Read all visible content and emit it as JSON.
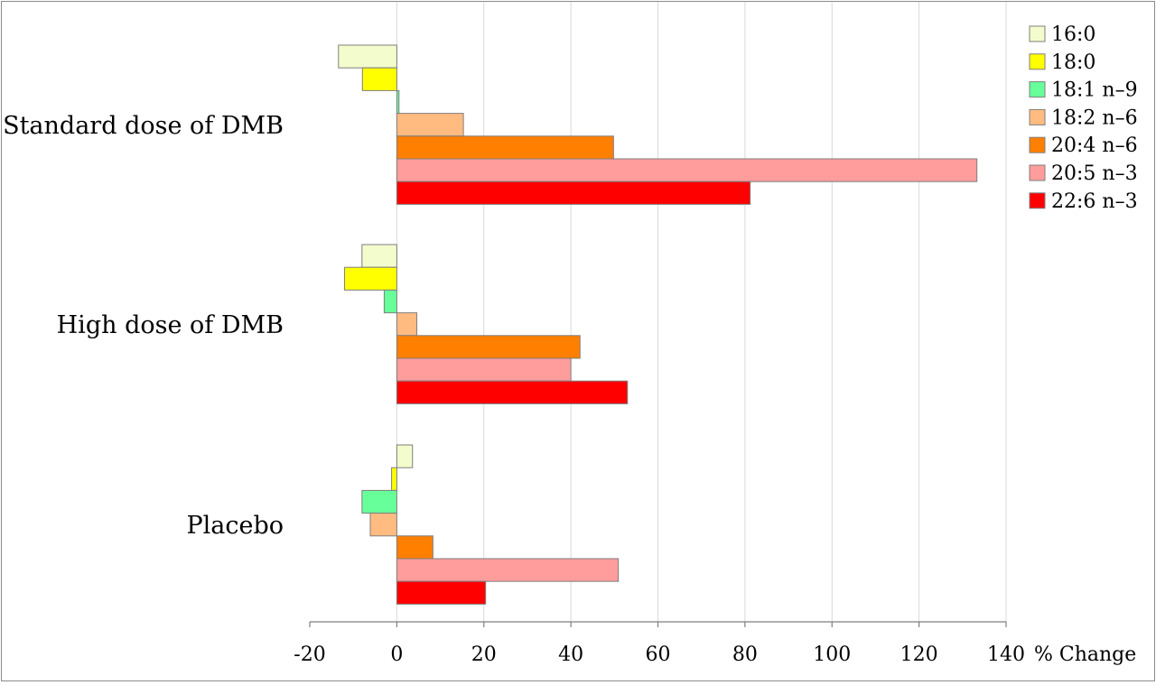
{
  "chart_data": {
    "type": "bar",
    "orientation": "horizontal",
    "title": "",
    "xlabel": "% Change",
    "ylabel": "",
    "xlim": [
      -20,
      140
    ],
    "xticks": [
      -20,
      0,
      20,
      40,
      60,
      80,
      100,
      120,
      140
    ],
    "grid": "vertical",
    "legend_position": "right",
    "categories": [
      "Standard dose of DMB",
      "High dose of DMB",
      "Placebo"
    ],
    "series": [
      {
        "name": "16:0",
        "color": "#f3fccc",
        "values": [
          -13.4,
          -8.0,
          3.6
        ]
      },
      {
        "name": "18:0",
        "color": "#ffff00",
        "values": [
          -7.9,
          -12.0,
          -1.2
        ]
      },
      {
        "name": "18:1 n–9",
        "color": "#66ff99",
        "values": [
          0.5,
          -2.9,
          -8.0
        ]
      },
      {
        "name": "18:2 n–6",
        "color": "#ffbb80",
        "values": [
          15.3,
          4.6,
          -6.1
        ]
      },
      {
        "name": "20:4 n–6",
        "color": "#ff7f00",
        "values": [
          49.8,
          42.1,
          8.3
        ]
      },
      {
        "name": "20:5 n–3",
        "color": "#ff9c9c",
        "values": [
          133.3,
          40.0,
          50.9
        ]
      },
      {
        "name": "22:6 n–3",
        "color": "#ff0000",
        "values": [
          81.2,
          53.0,
          20.4
        ]
      }
    ]
  }
}
